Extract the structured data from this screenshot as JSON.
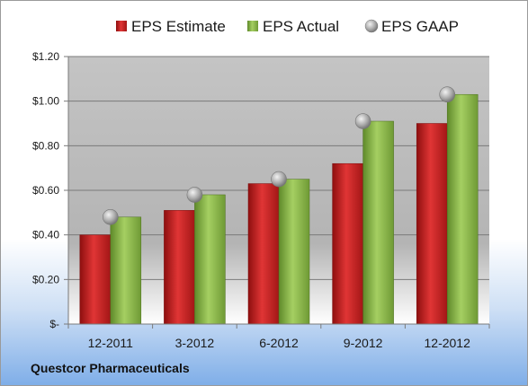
{
  "company": "Questcor Pharmaceuticals",
  "colors": {
    "estimate": "#d41f1f",
    "actual": "#8cb849",
    "gaap": "#b8b8b8"
  },
  "chart_data": {
    "type": "bar",
    "title": "",
    "xlabel": "",
    "ylabel": "",
    "categories": [
      "12-2011",
      "3-2012",
      "6-2012",
      "9-2012",
      "12-2012"
    ],
    "series": [
      {
        "name": "EPS Estimate",
        "kind": "bar",
        "values": [
          0.4,
          0.51,
          0.63,
          0.72,
          0.9
        ]
      },
      {
        "name": "EPS Actual",
        "kind": "bar",
        "values": [
          0.48,
          0.58,
          0.65,
          0.91,
          1.03
        ]
      },
      {
        "name": "EPS GAAP",
        "kind": "marker",
        "values": [
          0.48,
          0.58,
          0.65,
          0.91,
          1.03
        ]
      }
    ],
    "yticks": [
      0,
      0.2,
      0.4,
      0.6,
      0.8,
      1.0,
      1.2
    ],
    "ytick_labels": [
      "$-",
      "$0.20",
      "$0.40",
      "$0.60",
      "$0.80",
      "$1.00",
      "$1.20"
    ],
    "ylim": [
      0,
      1.2
    ],
    "grid": true,
    "legend_position": "top"
  }
}
